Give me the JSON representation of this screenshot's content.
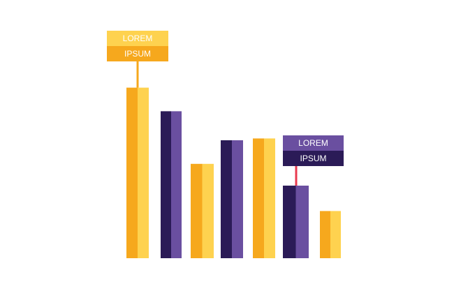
{
  "chart_data": {
    "type": "bar",
    "values": [
      94,
      81,
      52,
      65,
      66,
      40,
      26
    ],
    "ylim": [
      0,
      100
    ],
    "colors": [
      [
        "#f6a81d",
        "#fed24f"
      ],
      [
        "#2b1b57",
        "#6a4fa0"
      ],
      [
        "#f6a81d",
        "#fed24f"
      ],
      [
        "#2b1b57",
        "#6a4fa0"
      ],
      [
        "#f6a81d",
        "#fed24f"
      ],
      [
        "#2b1b57",
        "#6a4fa0"
      ],
      [
        "#f6a81d",
        "#fed24f"
      ]
    ],
    "annotations": [
      {
        "bar": 0,
        "lines": [
          "LOREM",
          "IPSUM"
        ],
        "colors": [
          "#fed24f",
          "#f6a81d"
        ],
        "stem_color": "#f6a81d"
      },
      {
        "bar": 5,
        "lines": [
          "LOREM",
          "IPSUM"
        ],
        "colors": [
          "#6a4fa0",
          "#2b1b57"
        ],
        "stem_color": "#e83a4f"
      }
    ]
  }
}
